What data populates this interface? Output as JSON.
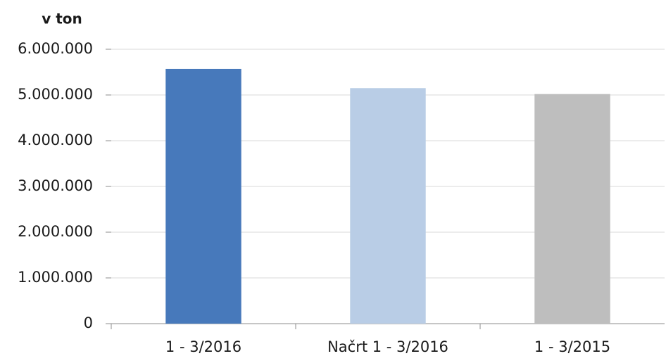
{
  "chart_data": {
    "type": "bar",
    "y_label": "v ton",
    "categories": [
      "1 - 3/2016",
      "Načrt 1 - 3/2016",
      "1 - 3/2015"
    ],
    "values": [
      5570000,
      5150000,
      5020000
    ],
    "colors": [
      "#4779bb",
      "#b9cde6",
      "#bebebe"
    ],
    "ylim": [
      0,
      6000000
    ],
    "yticks": [
      0,
      {
        "value": 1000000,
        "label": "1.000.000"
      },
      {
        "value": 2000000,
        "label": "2.000.000"
      },
      {
        "value": 3000000,
        "label": "3.000.000"
      },
      {
        "value": 4000000,
        "label": "4.000.000"
      },
      {
        "value": 5000000,
        "label": "5.000.000"
      },
      {
        "value": 6000000,
        "label": "6.000.000"
      }
    ],
    "grid": true
  }
}
